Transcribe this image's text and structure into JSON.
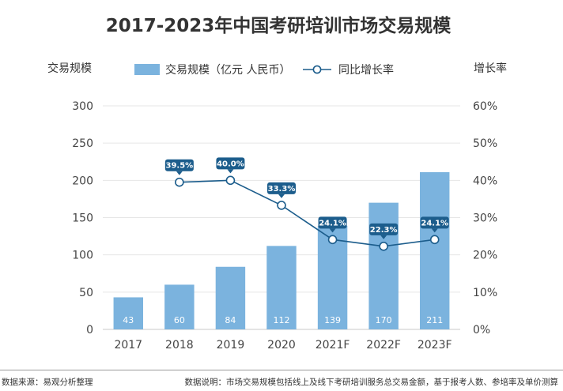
{
  "chart_data": {
    "type": "bar",
    "title": "2017-2023年中国考研培训市场交易规模",
    "ylabel_left": "交易规模",
    "ylabel_right": "增长率",
    "categories": [
      "2017",
      "2018",
      "2019",
      "2020",
      "2021F",
      "2022F",
      "2023F"
    ],
    "series": [
      {
        "name": "交易规模（亿元 人民币）",
        "type": "bar",
        "axis": "left",
        "values": [
          43,
          60,
          84,
          112,
          139,
          170,
          211
        ],
        "color": "#7bb3de"
      },
      {
        "name": "同比增长率",
        "type": "line",
        "axis": "right",
        "values": [
          null,
          39.5,
          40.0,
          33.3,
          24.1,
          22.3,
          24.1
        ],
        "color": "#1c5d8c"
      }
    ],
    "ylim_left": [
      0,
      300
    ],
    "yticks_left": [
      "0",
      "50",
      "100",
      "150",
      "200",
      "250",
      "300"
    ],
    "ylim_right": [
      0,
      60
    ],
    "yticks_right": [
      "0%",
      "10%",
      "20%",
      "30%",
      "40%",
      "50%",
      "60%"
    ],
    "bar_labels": [
      "43",
      "60",
      "84",
      "112",
      "139",
      "170",
      "211"
    ],
    "line_labels": [
      "",
      "39.5%",
      "40.0%",
      "33.3%",
      "24.1%",
      "22.3%",
      "24.1%"
    ],
    "grid": true,
    "legend_position": "top-center"
  },
  "footer": {
    "source": "数据来源：易观分析整理",
    "note": "数据说明：市场交易规模包括线上及线下考研培训服务总交易金额，基于报考人数、参培率及单价测算"
  }
}
